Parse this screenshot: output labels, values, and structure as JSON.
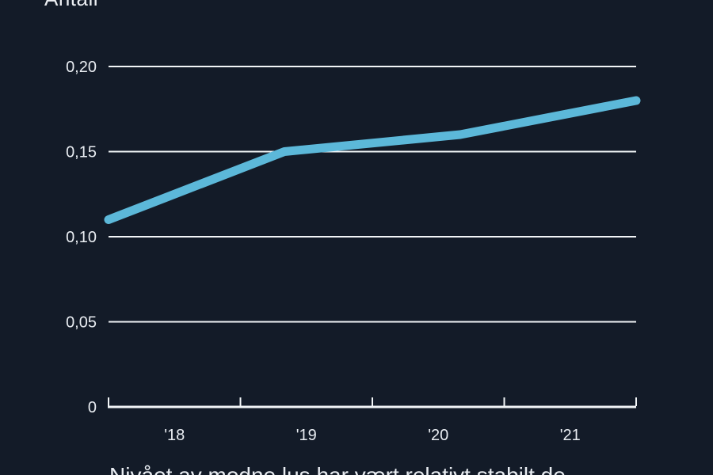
{
  "colors": {
    "background": "#131B28",
    "grid": "#F2F5F7",
    "axis": "#F2F5F7",
    "text": "#E9EDF2",
    "line": "#5CB8D9"
  },
  "chart_data": {
    "type": "line",
    "title": "Antall",
    "xlabel": "",
    "ylabel": "Antall",
    "x_axis": {
      "labels": [
        "'18",
        "'19",
        "'20",
        "'21"
      ]
    },
    "y_axis": {
      "ticks": [
        {
          "label": "0",
          "value": 0.0
        },
        {
          "label": "0,05",
          "value": 0.05
        },
        {
          "label": "0,10",
          "value": 0.1
        },
        {
          "label": "0,15",
          "value": 0.15
        },
        {
          "label": "0,20",
          "value": 0.2
        }
      ],
      "range": [
        0,
        0.215
      ]
    },
    "series": [
      {
        "values": [
          0.11,
          0.15,
          0.16,
          0.18
        ],
        "color": "#5CB8D9"
      }
    ],
    "grid": true,
    "legend_position": "none"
  },
  "caption": {
    "text": "Nivået av modne lus har vært relativt stabilt de"
  }
}
